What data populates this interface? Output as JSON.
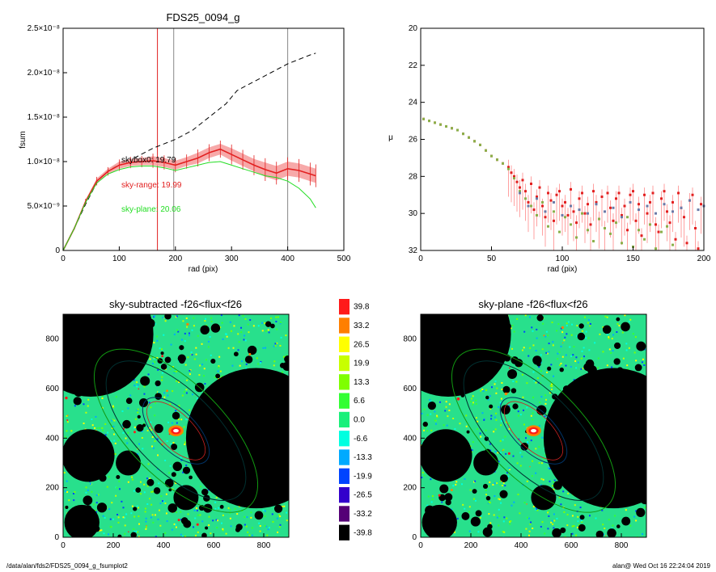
{
  "footer": {
    "path": "/data/alan/fds2/FDS25_0094_g_fsumplot2",
    "stamp": "alan@  Wed Oct 16 22:24:04 2019"
  },
  "chart_data": [
    {
      "id": "fsum",
      "type": "line",
      "title": "FDS25_0094_g",
      "xlabel": "rad (pix)",
      "ylabel": "fsum",
      "xlim": [
        0,
        500
      ],
      "ylim": [
        0,
        2.5e-08
      ],
      "x_ticks": [
        "0",
        "100",
        "200",
        "300",
        "400",
        "500"
      ],
      "y_ticks": [
        "0",
        "5.0×10⁻⁹",
        "1.0×10⁻⁸",
        "1.5×10⁻⁸",
        "2.0×10⁻⁸",
        "2.5×10⁻⁸"
      ],
      "y_tick_values": [
        0,
        5e-09,
        1e-08,
        1.5e-08,
        2e-08,
        2.5e-08
      ],
      "vlines": [
        {
          "x": 168,
          "color": "#e22020"
        },
        {
          "x": 197,
          "color": "#888888"
        },
        {
          "x": 400,
          "color": "#888888"
        }
      ],
      "annotations": [
        {
          "text": "skybox0: 19.79",
          "color": "#000000"
        },
        {
          "text": "sky-range: 19.99",
          "color": "#e22020"
        },
        {
          "text": "sky-plane: 20.06",
          "color": "#22dd22"
        }
      ],
      "series": [
        {
          "color": "#000000",
          "style": "dashed",
          "x": [
            0,
            20,
            40,
            60,
            80,
            100,
            130,
            160,
            200,
            230,
            260,
            290,
            310,
            340,
            370,
            400,
            420,
            440,
            450
          ],
          "y": [
            0,
            2.5e-09,
            5.2e-09,
            7.6e-09,
            9e-09,
            9.8e-09,
            1.05e-08,
            1.15e-08,
            1.25e-08,
            1.35e-08,
            1.5e-08,
            1.65e-08,
            1.8e-08,
            1.9e-08,
            2e-08,
            2.1e-08,
            2.15e-08,
            2.2e-08,
            2.22e-08
          ]
        },
        {
          "color": "#e22020",
          "style": "errorbars",
          "x": [
            0,
            20,
            40,
            60,
            80,
            100,
            120,
            140,
            160,
            180,
            200,
            220,
            240,
            260,
            280,
            300,
            320,
            340,
            360,
            380,
            400,
            420,
            440,
            450
          ],
          "y": [
            0,
            2.5e-09,
            5.5e-09,
            7.8e-09,
            8.9e-09,
            9.6e-09,
            9.9e-09,
            1e-08,
            1.01e-08,
            9.9e-09,
            9.6e-09,
            1e-08,
            1.04e-08,
            1.1e-08,
            1.14e-08,
            1.08e-08,
            1.02e-08,
            9.6e-09,
            9.1e-09,
            8.7e-09,
            9.2e-09,
            9e-09,
            8.6e-09,
            8.4e-09
          ],
          "err": [
            0,
            1e-10,
            2e-10,
            3e-10,
            3e-10,
            4e-10,
            4e-10,
            4e-10,
            5e-10,
            5e-10,
            5e-10,
            5e-10,
            6e-10,
            6e-10,
            6e-10,
            7e-10,
            7e-10,
            7e-10,
            8e-10,
            8e-10,
            8e-10,
            8e-10,
            8e-10,
            8e-10
          ]
        },
        {
          "color": "#22dd22",
          "style": "solid",
          "x": [
            0,
            20,
            40,
            60,
            80,
            100,
            120,
            140,
            160,
            180,
            200,
            220,
            240,
            260,
            280,
            300,
            320,
            340,
            360,
            380,
            400,
            420,
            440,
            450
          ],
          "y": [
            0,
            2.5e-09,
            5.4e-09,
            7.6e-09,
            8.6e-09,
            9.1e-09,
            9.4e-09,
            9.5e-09,
            9.5e-09,
            9.3e-09,
            9e-09,
            9.3e-09,
            9.6e-09,
            9.9e-09,
            1e-08,
            9.6e-09,
            9.2e-09,
            8.8e-09,
            8.4e-09,
            8.2e-09,
            7.8e-09,
            7e-09,
            5.8e-09,
            4.8e-09
          ]
        }
      ]
    },
    {
      "id": "mu",
      "type": "scatter",
      "title": "",
      "xlabel": "rad (pix)",
      "ylabel": "μ",
      "xlim": [
        0,
        200
      ],
      "ylim": [
        32,
        20
      ],
      "x_ticks": [
        "0",
        "50",
        "100",
        "150",
        "200"
      ],
      "y_ticks": [
        "20",
        "22",
        "24",
        "26",
        "28",
        "30",
        "32"
      ],
      "series": [
        {
          "color": "#e22020",
          "x": [
            2,
            6,
            10,
            14,
            18,
            22,
            26,
            30,
            34,
            38,
            42,
            46,
            50,
            54,
            58,
            62,
            64,
            66,
            68,
            70,
            72,
            74,
            76,
            78,
            80,
            82,
            84,
            86,
            88,
            90,
            92,
            94,
            96,
            98,
            100,
            102,
            104,
            106,
            108,
            110,
            112,
            114,
            116,
            118,
            120,
            122,
            124,
            126,
            128,
            130,
            132,
            134,
            136,
            138,
            140,
            142,
            144,
            146,
            148,
            150,
            152,
            154,
            156,
            158,
            160,
            162,
            164,
            166,
            168,
            170,
            172,
            174,
            176,
            178,
            180,
            182,
            184,
            186,
            188,
            190,
            192,
            194,
            196,
            198
          ],
          "y": [
            24.9,
            25.0,
            25.1,
            25.2,
            25.3,
            25.4,
            25.5,
            25.7,
            25.9,
            26.1,
            26.3,
            26.6,
            26.9,
            27.1,
            27.3,
            27.5,
            27.8,
            28.0,
            28.3,
            28.6,
            28.2,
            28.8,
            29.4,
            28.4,
            29.8,
            29.1,
            28.6,
            29.6,
            30.2,
            28.9,
            29.3,
            30.4,
            29.0,
            28.8,
            29.6,
            29.4,
            30.1,
            28.7,
            29.9,
            30.5,
            29.2,
            28.9,
            30.0,
            29.5,
            30.6,
            28.8,
            29.4,
            30.3,
            29.1,
            30.8,
            28.9,
            29.7,
            30.4,
            29.2,
            28.9,
            30.1,
            29.6,
            30.9,
            29.0,
            28.8,
            30.4,
            29.5,
            31.2,
            29.0,
            30.0,
            29.4,
            28.9,
            30.6,
            31.0,
            29.2,
            28.8,
            29.9,
            30.5,
            29.4,
            31.4,
            28.9,
            29.7,
            30.2,
            31.6,
            29.3,
            29.0,
            30.8,
            31.9,
            29.5
          ]
        },
        {
          "color": "#8ab04a",
          "x": [
            2,
            6,
            10,
            14,
            18,
            22,
            26,
            30,
            34,
            38,
            42,
            46,
            50,
            54,
            58,
            62,
            66,
            70,
            74,
            78,
            82,
            86,
            90,
            94,
            98,
            102,
            106,
            110,
            114,
            118,
            122,
            126,
            130,
            134,
            138,
            142,
            146,
            150,
            154,
            158,
            162,
            166,
            170,
            174,
            178
          ],
          "y": [
            24.9,
            25.0,
            25.1,
            25.2,
            25.3,
            25.4,
            25.5,
            25.7,
            25.9,
            26.1,
            26.3,
            26.6,
            26.9,
            27.1,
            27.3,
            27.6,
            28.1,
            28.8,
            29.2,
            29.6,
            30.1,
            29.4,
            30.7,
            29.9,
            31.0,
            30.2,
            30.6,
            31.3,
            30.0,
            30.9,
            31.5,
            30.3,
            30.8,
            31.1,
            30.5,
            31.6,
            30.2,
            31.8,
            30.9,
            31.4,
            30.6,
            31.9,
            31.0,
            30.7,
            31.7
          ]
        },
        {
          "color": "#6a7aa8",
          "x": [
            70,
            76,
            82,
            88,
            94,
            100,
            106,
            112,
            118,
            124,
            130,
            136,
            142,
            148,
            154,
            160,
            166,
            172,
            178,
            184,
            190,
            196,
            200
          ],
          "y": [
            28.9,
            29.6,
            29.2,
            29.9,
            29.4,
            30.1,
            29.6,
            29.8,
            30.0,
            29.5,
            29.9,
            29.7,
            30.2,
            29.4,
            29.8,
            29.6,
            30.0,
            29.5,
            29.9,
            29.7,
            29.3,
            29.8,
            29.6
          ]
        }
      ]
    },
    {
      "id": "img-sky-subtracted",
      "type": "heatmap",
      "title": "sky-subtracted -f26<flux<f26",
      "xlim": [
        0,
        900
      ],
      "ylim": [
        0,
        900
      ],
      "x_ticks": [
        "0",
        "200",
        "400",
        "600",
        "800"
      ],
      "y_ticks": [
        "0",
        "200",
        "400",
        "600",
        "800"
      ]
    },
    {
      "id": "img-sky-plane",
      "type": "heatmap",
      "title": "sky-plane -f26<flux<f26",
      "xlim": [
        0,
        900
      ],
      "ylim": [
        0,
        900
      ],
      "x_ticks": [
        "0",
        "200",
        "400",
        "600",
        "800"
      ],
      "y_ticks": [
        "0",
        "200",
        "400",
        "600",
        "800"
      ]
    },
    {
      "id": "colorbar",
      "type": "table",
      "levels": [
        {
          "label": "39.8",
          "color": "#ff1a1a"
        },
        {
          "label": "33.2",
          "color": "#ff7f00"
        },
        {
          "label": "26.5",
          "color": "#ffff00"
        },
        {
          "label": "19.9",
          "color": "#c8ff00"
        },
        {
          "label": "13.3",
          "color": "#7fff00"
        },
        {
          "label": "6.6",
          "color": "#33ff33"
        },
        {
          "label": "0.0",
          "color": "#1af07a"
        },
        {
          "label": "-6.6",
          "color": "#00ffe0"
        },
        {
          "label": "-13.3",
          "color": "#00aaff"
        },
        {
          "label": "-19.9",
          "color": "#0044ff"
        },
        {
          "label": "-26.5",
          "color": "#3300cc"
        },
        {
          "label": "-33.2",
          "color": "#550077"
        },
        {
          "label": "-39.8",
          "color": "#000000"
        }
      ]
    }
  ]
}
